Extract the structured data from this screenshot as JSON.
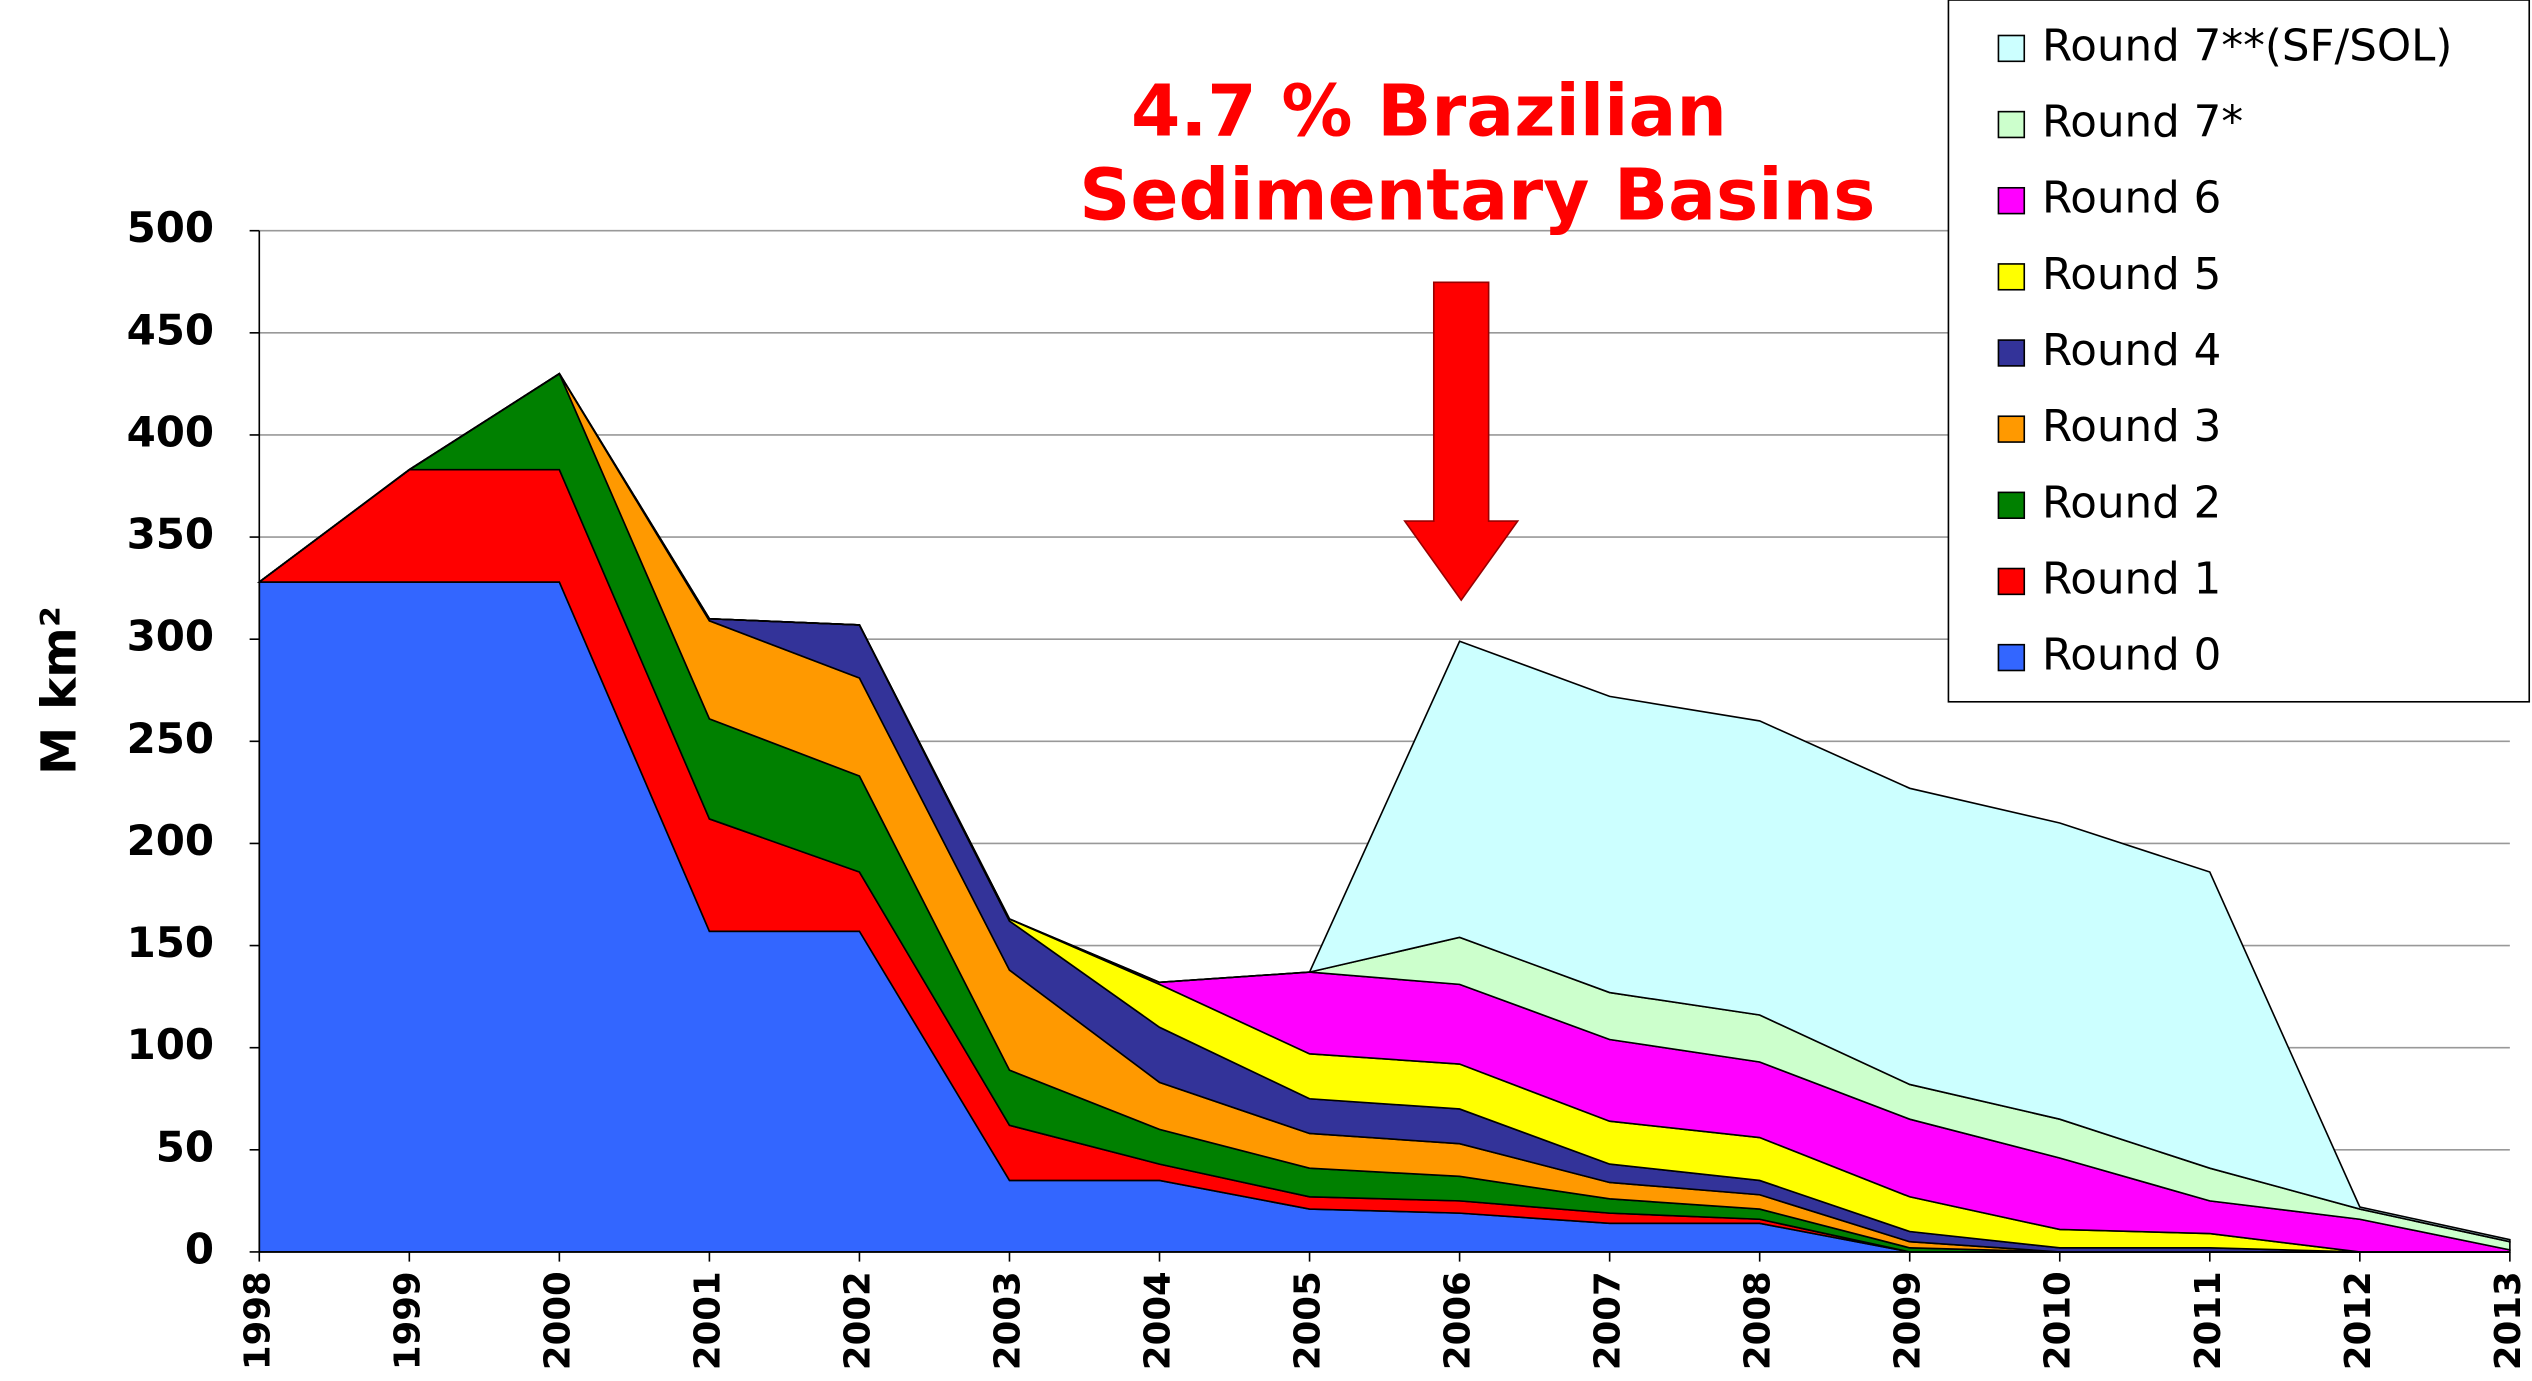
{
  "chart_data": {
    "type": "stacked_area",
    "annotation": [
      "4.7 % Brazilian",
      "Sedimentary Basins"
    ],
    "y_label": "M km²",
    "x": [
      1998,
      1999,
      2000,
      2001,
      2002,
      2003,
      2004,
      2005,
      2006,
      2007,
      2008,
      2009,
      2010,
      2011,
      2012,
      2013
    ],
    "xlim": [
      1998,
      2013
    ],
    "ylim": [
      0,
      500
    ],
    "yticks": [
      0,
      50,
      100,
      150,
      200,
      250,
      300,
      350,
      400,
      450,
      500
    ],
    "grid": true,
    "legend": "top-right",
    "series": [
      {
        "name": "Round 0",
        "color": "#3366ff",
        "values": [
          328,
          328,
          328,
          157,
          157,
          35,
          35,
          21,
          19,
          14,
          14,
          0,
          0,
          0,
          0,
          0
        ]
      },
      {
        "name": "Round 1",
        "color": "#ff0000",
        "values": [
          0,
          55,
          55,
          55,
          29,
          27,
          8,
          6,
          6,
          5,
          2,
          0,
          0,
          0,
          0,
          0
        ]
      },
      {
        "name": "Round 2",
        "color": "#008000",
        "values": [
          0,
          0,
          47,
          49,
          47,
          27,
          17,
          14,
          12,
          7,
          5,
          2,
          0,
          0,
          0,
          0
        ]
      },
      {
        "name": "Round 3",
        "color": "#ff9900",
        "values": [
          0,
          0,
          0,
          48,
          48,
          49,
          23,
          17,
          16,
          8,
          7,
          3,
          0,
          0,
          0,
          0
        ]
      },
      {
        "name": "Round 4",
        "color": "#333399",
        "values": [
          0,
          0,
          0,
          1,
          26,
          24,
          27,
          17,
          17,
          9,
          7,
          5,
          2,
          2,
          0,
          0
        ]
      },
      {
        "name": "Round 5",
        "color": "#ffff00",
        "values": [
          0,
          0,
          0,
          0,
          0,
          1,
          21,
          22,
          22,
          21,
          21,
          17,
          9,
          7,
          0,
          0
        ]
      },
      {
        "name": "Round 6",
        "color": "#ff00ff",
        "values": [
          0,
          0,
          0,
          0,
          0,
          0,
          1,
          40,
          39,
          40,
          37,
          38,
          35,
          16,
          16,
          1
        ]
      },
      {
        "name": "Round 7*",
        "color": "#ccffcc",
        "values": [
          0,
          0,
          0,
          0,
          0,
          0,
          0,
          0,
          23,
          23,
          23,
          17,
          19,
          16,
          5,
          4
        ]
      },
      {
        "name": "Round 7**(SF/SOL)",
        "color": "#ccffff",
        "values": [
          0,
          0,
          0,
          0,
          0,
          0,
          0,
          0,
          145,
          145,
          144,
          145,
          145,
          145,
          1,
          1
        ]
      }
    ]
  }
}
